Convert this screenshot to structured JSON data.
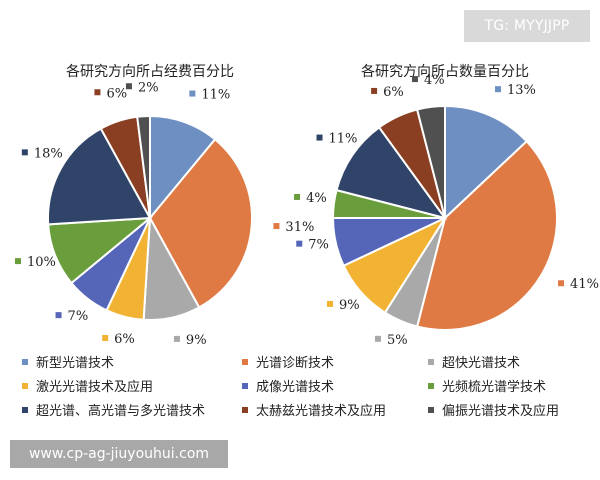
{
  "watermark_top": "TG: MYYJJPP",
  "watermark_bottom": "www.cp-ag-jiuyouhui.com",
  "legend": [
    {
      "label": "新型光谱技术",
      "color": "#6e8fc2"
    },
    {
      "label": "光谱诊断技术",
      "color": "#e07a45"
    },
    {
      "label": "超快光谱技术",
      "color": "#a9a9a9"
    },
    {
      "label": "激光光谱技术及应用",
      "color": "#f2b233"
    },
    {
      "label": "成像光谱技术",
      "color": "#5566b8"
    },
    {
      "label": "光频梳光谱学技术",
      "color": "#6a9e3d"
    },
    {
      "label": "超光谱、高光谱与多光谱技术",
      "color": "#2f4468"
    },
    {
      "label": "太赫兹光谱技术及应用",
      "color": "#8b3f22"
    },
    {
      "label": "偏振光谱技术及应用",
      "color": "#505050"
    }
  ],
  "chart_data": [
    {
      "type": "pie",
      "title": "各研究方向所占经费百分比",
      "categories": [
        "新型光谱技术",
        "光谱诊断技术",
        "超快光谱技术",
        "激光光谱技术及应用",
        "成像光谱技术",
        "光频梳光谱学技术",
        "超光谱、高光谱与多光谱技术",
        "太赫兹光谱技术及应用",
        "偏振光谱技术及应用"
      ],
      "values": [
        11,
        31,
        9,
        6,
        7,
        10,
        18,
        6,
        2
      ],
      "labels": [
        "11%",
        "31%",
        "9%",
        "6%",
        "7%",
        "10%",
        "18%",
        "6%",
        "2%"
      ]
    },
    {
      "type": "pie",
      "title": "各研究方向所占数量百分比",
      "categories": [
        "新型光谱技术",
        "光谱诊断技术",
        "超快光谱技术",
        "激光光谱技术及应用",
        "成像光谱技术",
        "光频梳光谱学技术",
        "超光谱、高光谱与多光谱技术",
        "太赫兹光谱技术及应用",
        "偏振光谱技术及应用"
      ],
      "values": [
        13,
        41,
        5,
        9,
        7,
        4,
        11,
        6,
        4
      ],
      "labels": [
        "13%",
        "41%",
        "5%",
        "9%",
        "7%",
        "4%",
        "11%",
        "6%",
        "4%"
      ]
    }
  ]
}
